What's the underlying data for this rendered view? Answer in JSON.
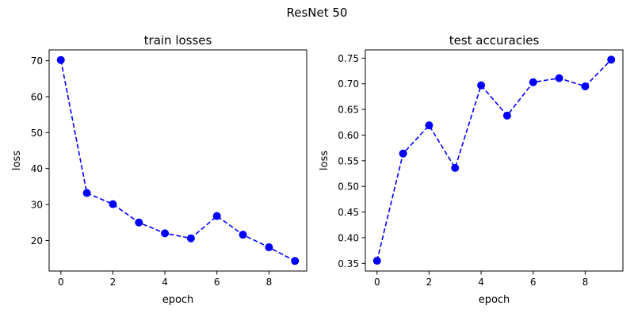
{
  "figure_title": "ResNet 50",
  "chart_data": [
    {
      "type": "line",
      "title": "train losses",
      "xlabel": "epoch",
      "ylabel": "loss",
      "x": [
        0,
        1,
        2,
        3,
        4,
        5,
        6,
        7,
        8,
        9
      ],
      "series": [
        {
          "values": [
            70.2,
            33.2,
            30.1,
            25.0,
            22.0,
            20.6,
            26.8,
            21.6,
            18.1,
            14.3
          ]
        }
      ],
      "xlim": [
        -0.45,
        9.45
      ],
      "ylim": [
        11.5,
        73.0
      ],
      "xticks": [
        0,
        2,
        4,
        6,
        8
      ],
      "yticks": [
        20,
        30,
        40,
        50,
        60,
        70
      ],
      "ytick_labels": [
        "20",
        "30",
        "40",
        "50",
        "60",
        "70"
      ],
      "line_style": "dashed",
      "marker": "circle",
      "color": "#0000ff",
      "grid": false
    },
    {
      "type": "line",
      "title": "test accuracies",
      "xlabel": "epoch",
      "ylabel": "loss",
      "x": [
        0,
        1,
        2,
        3,
        4,
        5,
        6,
        7,
        8,
        9
      ],
      "series": [
        {
          "values": [
            0.355,
            0.564,
            0.619,
            0.536,
            0.697,
            0.638,
            0.703,
            0.711,
            0.695,
            0.747
          ]
        }
      ],
      "xlim": [
        -0.45,
        9.45
      ],
      "ylim": [
        0.335,
        0.766
      ],
      "xticks": [
        0,
        2,
        4,
        6,
        8
      ],
      "yticks": [
        0.35,
        0.4,
        0.45,
        0.5,
        0.55,
        0.6,
        0.65,
        0.7,
        0.75
      ],
      "ytick_labels": [
        "0.35",
        "0.40",
        "0.45",
        "0.50",
        "0.55",
        "0.60",
        "0.65",
        "0.70",
        "0.75"
      ],
      "line_style": "dashed",
      "marker": "circle",
      "color": "#0000ff",
      "grid": false
    }
  ]
}
